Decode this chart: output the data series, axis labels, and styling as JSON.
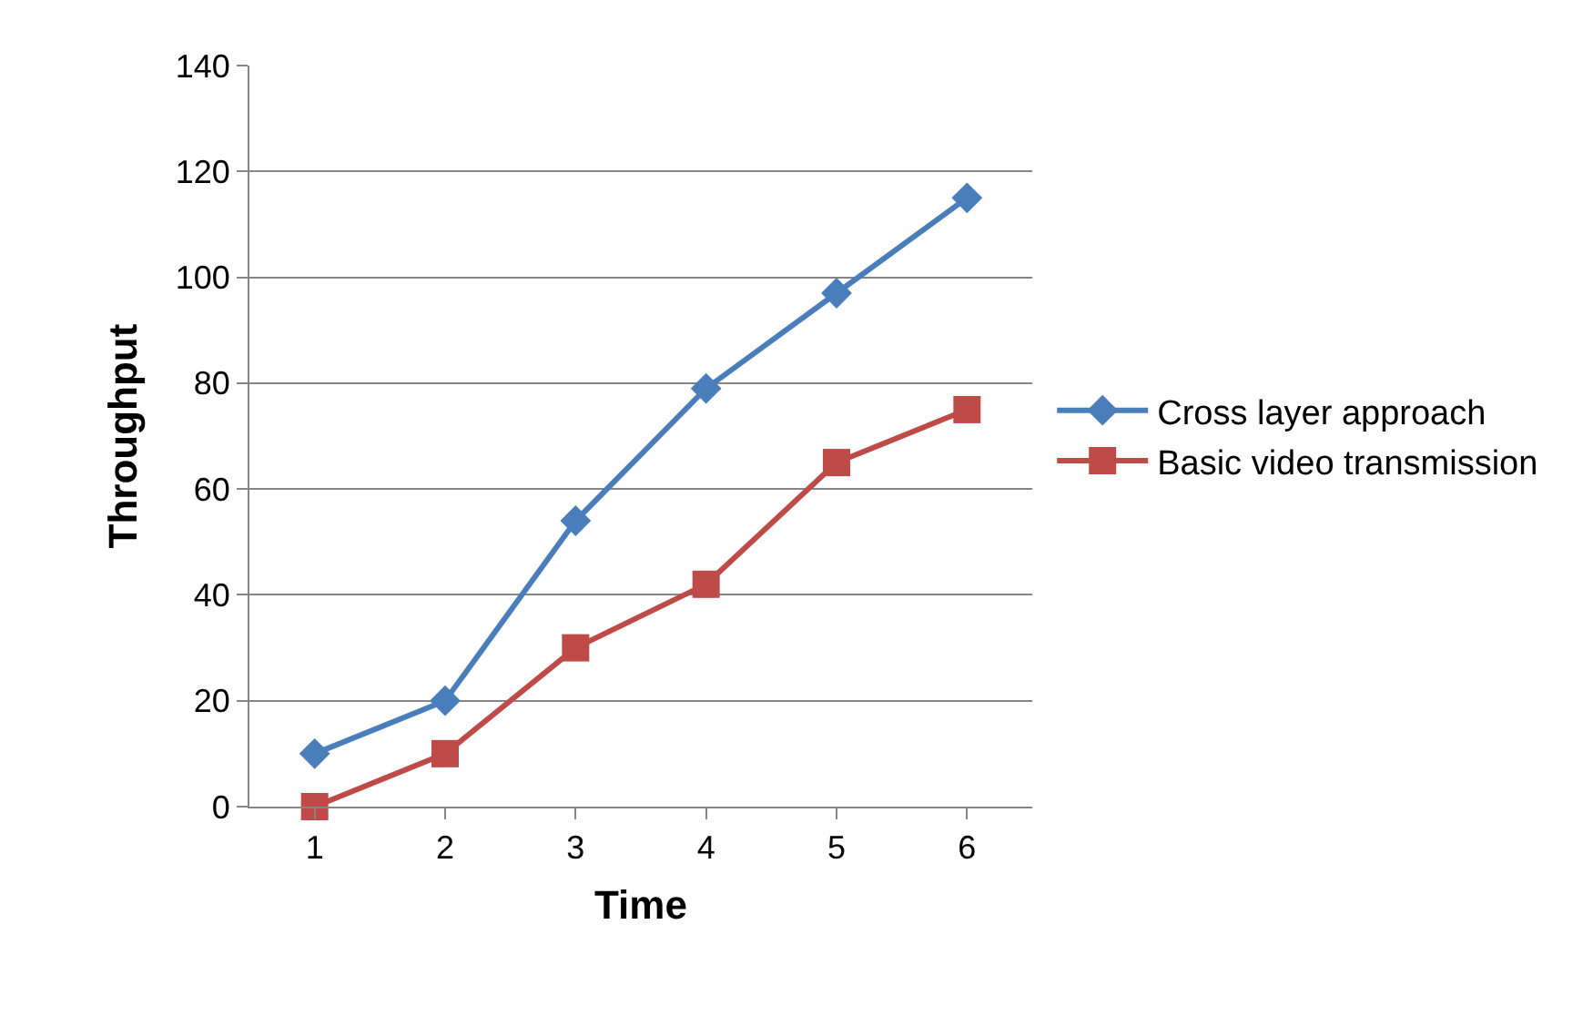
{
  "chart_data": {
    "type": "line",
    "xlabel": "Time",
    "ylabel": "Throughput",
    "categories": [
      "1",
      "2",
      "3",
      "4",
      "5",
      "6"
    ],
    "series": [
      {
        "name": "Cross layer approach",
        "color": "#4a7ebb",
        "marker": "diamond",
        "values": [
          10,
          20,
          54,
          79,
          97,
          115
        ]
      },
      {
        "name": "Basic video transmission",
        "color": "#be4b48",
        "marker": "square",
        "values": [
          0,
          10,
          30,
          42,
          65,
          75
        ]
      }
    ],
    "ylim": [
      0,
      140
    ],
    "yticks": [
      0,
      20,
      40,
      60,
      80,
      100,
      120,
      140
    ],
    "grid": "y",
    "legend": "right"
  }
}
